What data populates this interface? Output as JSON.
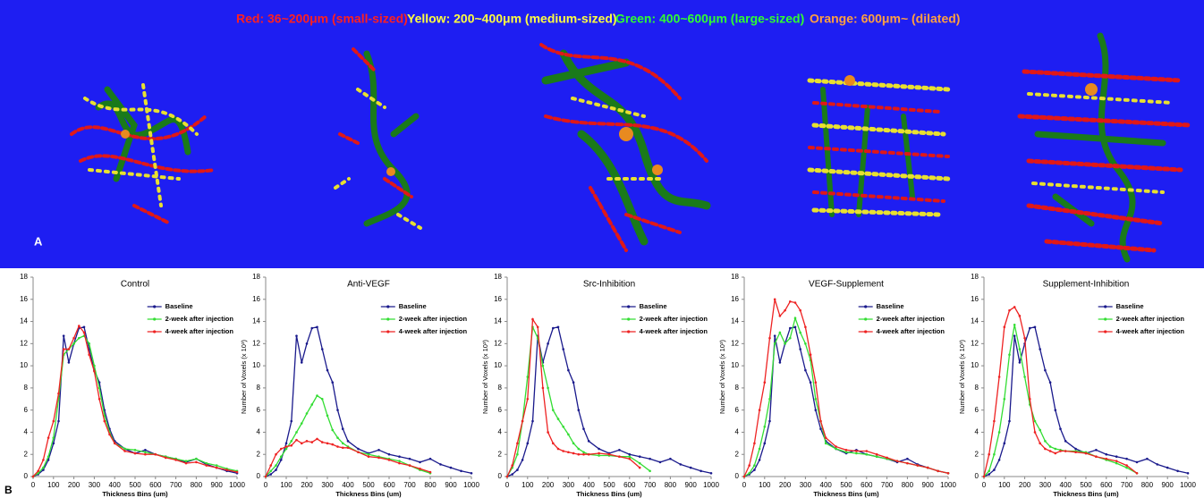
{
  "size_legend": [
    {
      "text": "Red: 36~200μm (small-sized)",
      "color": "#ff2020"
    },
    {
      "text": "Yellow: 200~400μm (medium-sized)",
      "color": "#ffff40"
    },
    {
      "text": "Green: 400~600μm (large-sized)",
      "color": "#30ff30"
    },
    {
      "text": "Orange: 600μm~ (dilated)",
      "color": "#ffa040"
    }
  ],
  "panel_a_label": "A",
  "panel_b_label": "B",
  "chart_data": [
    {
      "type": "line",
      "title": "Control",
      "x_label": "Thickness  Bins (um)",
      "legend": "upper right",
      "xlim": [
        0,
        1000
      ],
      "xticks": [
        0,
        100,
        200,
        300,
        400,
        500,
        600,
        700,
        800,
        900,
        1000
      ],
      "ylim": [
        0,
        18
      ],
      "yticks": [
        0,
        2,
        4,
        6,
        8,
        10,
        12,
        14,
        16,
        18
      ],
      "x": [
        0,
        25,
        50,
        75,
        100,
        125,
        150,
        175,
        200,
        225,
        250,
        275,
        300,
        325,
        350,
        375,
        400,
        450,
        500,
        550,
        600,
        650,
        700,
        750,
        800,
        850,
        900,
        950,
        1000
      ],
      "series": [
        {
          "name": "Baseline",
          "color": "#1a1a8c",
          "values": [
            0,
            0.2,
            0.6,
            1.5,
            3,
            5,
            12.7,
            10.3,
            12,
            13.4,
            13.5,
            11.5,
            9.6,
            8.5,
            6,
            4.3,
            3.2,
            2.5,
            2.1,
            2.4,
            2,
            1.8,
            1.6,
            1.3,
            1.6,
            1.1,
            0.8,
            0.5,
            0.3
          ]
        },
        {
          "name": "2-week after injection",
          "color": "#33dd33",
          "values": [
            0,
            0.3,
            0.8,
            1.8,
            3.5,
            7,
            11,
            11.5,
            12,
            12.5,
            12.7,
            12,
            10,
            8,
            5.5,
            4,
            3,
            2.5,
            2.4,
            2.2,
            2,
            1.8,
            1.6,
            1.4,
            1.6,
            1.2,
            1,
            0.7,
            0.5
          ]
        },
        {
          "name": "4-week after injection",
          "color": "#ee2222",
          "values": [
            0,
            0.5,
            1.5,
            3.5,
            5,
            7.5,
            11.5,
            11.5,
            12.5,
            13.6,
            13,
            11,
            9.5,
            7,
            5,
            3.8,
            3,
            2.3,
            2.1,
            2,
            2,
            1.7,
            1.5,
            1.2,
            1.3,
            1,
            0.8,
            0.6,
            0.4
          ]
        }
      ]
    },
    {
      "type": "line",
      "title": "Anti-VEGF",
      "x_label": "Thickness  Bins (um)",
      "y_label": "Number of Voxels (x 10³)",
      "legend": "upper right",
      "xlim": [
        0,
        1000
      ],
      "xticks": [
        0,
        100,
        200,
        300,
        400,
        500,
        600,
        700,
        800,
        900,
        1000
      ],
      "ylim": [
        0,
        18
      ],
      "yticks": [
        0,
        2,
        4,
        6,
        8,
        10,
        12,
        14,
        16,
        18
      ],
      "x": [
        0,
        25,
        50,
        75,
        100,
        125,
        150,
        175,
        200,
        225,
        250,
        275,
        300,
        325,
        350,
        375,
        400,
        450,
        500,
        550,
        600,
        650,
        700,
        750,
        800,
        850,
        900,
        950,
        1000
      ],
      "series": [
        {
          "name": "Baseline",
          "color": "#1a1a8c",
          "values": [
            0,
            0.2,
            0.6,
            1.5,
            3,
            5,
            12.7,
            10.3,
            12,
            13.4,
            13.5,
            11.5,
            9.6,
            8.5,
            6,
            4.3,
            3.2,
            2.5,
            2.1,
            2.4,
            2,
            1.8,
            1.6,
            1.3,
            1.6,
            1.1,
            0.8,
            0.5,
            0.3
          ]
        },
        {
          "name": "2-week after injection",
          "color": "#33dd33",
          "values": [
            0,
            0.5,
            1,
            1.8,
            2.5,
            3.2,
            4,
            4.8,
            5.7,
            6.5,
            7.3,
            7,
            5.5,
            4.2,
            3.5,
            3,
            2.7,
            2.2,
            2,
            1.8,
            1.6,
            1.4,
            1,
            0.6,
            0.3,
            null,
            null,
            null,
            null
          ]
        },
        {
          "name": "4-week after injection",
          "color": "#ee2222",
          "values": [
            0,
            1,
            2,
            2.5,
            2.7,
            2.8,
            3.3,
            3,
            3.2,
            3.1,
            3.4,
            3.1,
            3,
            2.9,
            2.7,
            2.6,
            2.6,
            2.2,
            1.8,
            1.7,
            1.5,
            1.2,
            1,
            0.7,
            0.4,
            null,
            null,
            null,
            null
          ]
        }
      ]
    },
    {
      "type": "line",
      "title": "Src-Inhibition",
      "x_label": "Thickness  Bins (um)",
      "y_label": "Number of Voxels (x 10³)",
      "legend": "upper right",
      "xlim": [
        0,
        1000
      ],
      "xticks": [
        0,
        100,
        200,
        300,
        400,
        500,
        600,
        700,
        800,
        900,
        1000
      ],
      "ylim": [
        0,
        18
      ],
      "yticks": [
        0,
        2,
        4,
        6,
        8,
        10,
        12,
        14,
        16,
        18
      ],
      "x": [
        0,
        25,
        50,
        75,
        100,
        125,
        150,
        175,
        200,
        225,
        250,
        275,
        300,
        325,
        350,
        375,
        400,
        450,
        500,
        550,
        600,
        650,
        700,
        750,
        800,
        850,
        900,
        950,
        1000
      ],
      "series": [
        {
          "name": "Baseline",
          "color": "#1a1a8c",
          "values": [
            0,
            0.2,
            0.6,
            1.5,
            3,
            5,
            12.7,
            10.3,
            12,
            13.4,
            13.5,
            11.5,
            9.6,
            8.5,
            6,
            4.3,
            3.2,
            2.5,
            2.1,
            2.4,
            2,
            1.8,
            1.6,
            1.3,
            1.6,
            1.1,
            0.8,
            0.5,
            0.3
          ]
        },
        {
          "name": "2-week after injection",
          "color": "#33dd33",
          "values": [
            0,
            0.8,
            2,
            5,
            9,
            13.5,
            12.5,
            10,
            8,
            6,
            5.2,
            4.5,
            3.8,
            3,
            2.5,
            2.2,
            2,
            1.9,
            1.9,
            1.8,
            1.8,
            1.2,
            0.5,
            null,
            null,
            null,
            null,
            null,
            null
          ]
        },
        {
          "name": "4-week after injection",
          "color": "#ee2222",
          "values": [
            0,
            1,
            3,
            5,
            7,
            14.2,
            13.5,
            8,
            4,
            3,
            2.5,
            2.3,
            2.2,
            2.1,
            2,
            2,
            2,
            2.1,
            2,
            1.8,
            1.6,
            0.8,
            null,
            null,
            null,
            null,
            null,
            null,
            null
          ]
        }
      ]
    },
    {
      "type": "line",
      "title": "VEGF-Supplement",
      "x_label": "Thickness  Bins (um)",
      "y_label": "Number of Voxels (x 10³)",
      "legend": "upper right",
      "xlim": [
        0,
        1000
      ],
      "xticks": [
        0,
        100,
        200,
        300,
        400,
        500,
        600,
        700,
        800,
        900,
        1000
      ],
      "ylim": [
        0,
        18
      ],
      "yticks": [
        0,
        2,
        4,
        6,
        8,
        10,
        12,
        14,
        16,
        18
      ],
      "x": [
        0,
        25,
        50,
        75,
        100,
        125,
        150,
        175,
        200,
        225,
        250,
        275,
        300,
        325,
        350,
        375,
        400,
        450,
        500,
        550,
        600,
        650,
        700,
        750,
        800,
        850,
        900,
        950,
        1000
      ],
      "series": [
        {
          "name": "Baseline",
          "color": "#1a1a8c",
          "values": [
            0,
            0.2,
            0.6,
            1.5,
            3,
            5,
            12.7,
            10.3,
            12,
            13.4,
            13.5,
            11.5,
            9.6,
            8.5,
            6,
            4.3,
            3.2,
            2.5,
            2.1,
            2.4,
            2,
            1.8,
            1.6,
            1.3,
            1.6,
            1.1,
            0.8,
            0.5,
            0.3
          ]
        },
        {
          "name": "2-week after injection",
          "color": "#33dd33",
          "values": [
            0,
            0.3,
            1,
            2.5,
            4.5,
            7,
            12,
            13,
            12,
            12.5,
            14.3,
            13,
            12,
            10.5,
            7,
            5,
            3,
            2.5,
            2.2,
            2.1,
            2,
            1.8,
            1.6,
            1.4,
            1.2,
            1,
            0.8,
            0.5,
            0.3
          ]
        },
        {
          "name": "4-week after injection",
          "color": "#ee2222",
          "values": [
            0,
            1,
            3,
            6,
            8.5,
            12.5,
            16,
            14.5,
            15,
            15.8,
            15.7,
            15,
            13.5,
            11,
            8.5,
            5,
            3.5,
            2.7,
            2.4,
            2.3,
            2.3,
            2,
            1.7,
            1.4,
            1.2,
            1,
            0.8,
            0.5,
            0.3
          ]
        }
      ]
    },
    {
      "type": "line",
      "title": "Supplement-Inhibition",
      "x_label": "Thickness  Bins (um)",
      "y_label": "Number of Voxels (x 10³)",
      "legend": "upper right",
      "xlim": [
        0,
        1000
      ],
      "xticks": [
        0,
        100,
        200,
        300,
        400,
        500,
        600,
        700,
        800,
        900,
        1000
      ],
      "ylim": [
        0,
        18
      ],
      "yticks": [
        0,
        2,
        4,
        6,
        8,
        10,
        12,
        14,
        16,
        18
      ],
      "x": [
        0,
        25,
        50,
        75,
        100,
        125,
        150,
        175,
        200,
        225,
        250,
        275,
        300,
        325,
        350,
        375,
        400,
        450,
        500,
        550,
        600,
        650,
        700,
        750,
        800,
        850,
        900,
        950,
        1000
      ],
      "series": [
        {
          "name": "Baseline",
          "color": "#1a1a8c",
          "values": [
            0,
            0.2,
            0.6,
            1.5,
            3,
            5,
            12.7,
            10.3,
            12,
            13.4,
            13.5,
            11.5,
            9.6,
            8.5,
            6,
            4.3,
            3.2,
            2.5,
            2.1,
            2.4,
            2,
            1.8,
            1.6,
            1.3,
            1.6,
            1.1,
            0.8,
            0.5,
            0.3
          ]
        },
        {
          "name": "2-week after injection",
          "color": "#33dd33",
          "values": [
            0,
            0.5,
            2,
            4,
            7,
            11,
            13.7,
            11.5,
            9,
            6.5,
            5,
            4.2,
            3.2,
            2.7,
            2.5,
            2.4,
            2.3,
            2.3,
            2.2,
            1.8,
            1.5,
            1.2,
            0.8,
            0.3,
            null,
            null,
            null,
            null,
            null
          ]
        },
        {
          "name": "4-week after injection",
          "color": "#ee2222",
          "values": [
            0,
            2,
            5,
            9,
            13.5,
            15,
            15.3,
            14.5,
            12.5,
            7,
            4,
            3,
            2.5,
            2.3,
            2.1,
            2.3,
            2.3,
            2.2,
            2.1,
            1.8,
            1.6,
            1.4,
            1,
            0.3,
            null,
            null,
            null,
            null,
            null
          ]
        }
      ]
    }
  ]
}
